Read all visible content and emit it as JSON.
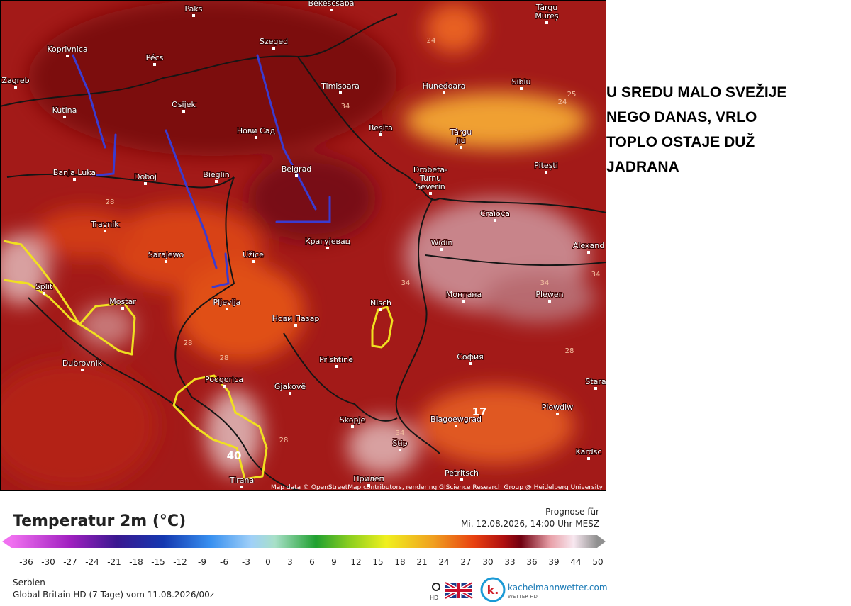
{
  "map": {
    "places": [
      [
        "Paks"
      ],
      [
        "Békéscsaba"
      ],
      [
        "Târgu",
        "Mureș"
      ],
      [
        "Koprivnica"
      ],
      [
        "Pécs"
      ],
      [
        "Szeged"
      ],
      [
        "Zagreb"
      ],
      [
        "Timișoara"
      ],
      [
        "Hunedoara"
      ],
      [
        "Sibiu"
      ],
      [
        "Osijek"
      ],
      [
        "Kutina"
      ],
      [
        "Нови Сад"
      ],
      [
        "Reșita"
      ],
      [
        "Târgu",
        "Jiu"
      ],
      [
        "Pitești"
      ],
      [
        "Banja Luka"
      ],
      [
        "Doboj"
      ],
      [
        "Bieglin"
      ],
      [
        "Belgrad"
      ],
      [
        "Drobeta-",
        "Turnu",
        "Severin"
      ],
      [
        "Craiova"
      ],
      [
        "Travnik"
      ],
      [
        "Sarajewo"
      ],
      [
        "Užice"
      ],
      [
        "Крагујевац"
      ],
      [
        "Widin"
      ],
      [
        "Alexand"
      ],
      [
        "Split"
      ],
      [
        "Mostar"
      ],
      [
        "Pljevlja"
      ],
      [
        "Нови Пазар"
      ],
      [
        "Nisch"
      ],
      [
        "Монтана"
      ],
      [
        "Plewen"
      ],
      [
        "Dubrovnik"
      ],
      [
        "Podgorica"
      ],
      [
        "Prishtinë"
      ],
      [
        "София"
      ],
      [
        "Gjakovë"
      ],
      [
        "Stara"
      ],
      [
        "Plowdiw"
      ],
      [
        "Skopje"
      ],
      [
        "Blagoewgrad"
      ],
      [
        "Štip"
      ],
      [
        "Kardsc"
      ],
      [
        "Petritsch"
      ],
      [
        "Прилеп"
      ],
      [
        "Tirana"
      ]
    ],
    "contour_labels": [
      24,
      25,
      24,
      34,
      28,
      34,
      34,
      28,
      28,
      28,
      28,
      17,
      40,
      34,
      34
    ],
    "attribution": "Map data © OpenStreetMap contributors, rendering GIScience Research Group @ Heidelberg University"
  },
  "annotation": [
    "U SREDU MALO SVEŽIJE",
    "NEGO DANAS, VRLO",
    "TOPLO OSTAJE DUŽ",
    "JADRANA"
  ],
  "legend": {
    "title": "Temperatur 2m (°C)",
    "ticks": [
      -36,
      -30,
      -27,
      -24,
      -21,
      -18,
      -15,
      -12,
      -9,
      -6,
      -3,
      0,
      3,
      6,
      9,
      12,
      15,
      18,
      21,
      24,
      27,
      30,
      33,
      36,
      39,
      44,
      50
    ]
  },
  "forecast": {
    "label": "Prognose für",
    "time": "Mi. 12.08.2026, 14:00 Uhr MESZ"
  },
  "footer": {
    "region": "Serbien",
    "model": "Global Britain HD (7 Tage) vom 11.08.2026/00z",
    "hd": "HD",
    "logo": "k.",
    "brand": "kachelmannwetter.com",
    "brand_sub": "WETTER HD"
  }
}
